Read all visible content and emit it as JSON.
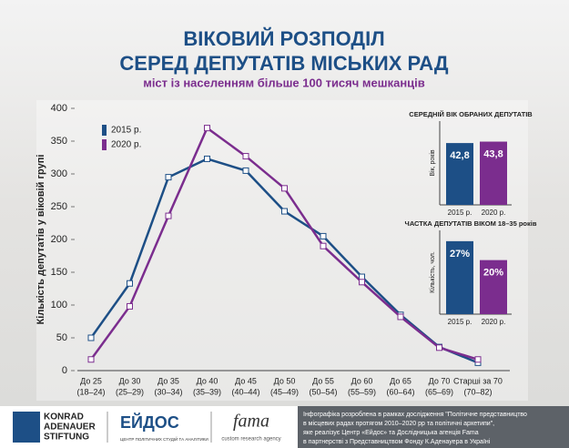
{
  "header": {
    "title_lines": [
      "ВІКОВИЙ РОЗПОДІЛ",
      "СЕРЕД ДЕПУТАТІВ МІСЬКИХ РАД"
    ],
    "subtitle": "міст із населенням більше 100 тисяч мешканців"
  },
  "chart_data": [
    {
      "type": "line",
      "y_label": "Кількість депутатів у віковій групі",
      "categories": [
        "До 25",
        "До 30",
        "До 35",
        "До 40",
        "До 45",
        "До 50",
        "До 55",
        "До 60",
        "До 65",
        "До 70",
        "Старші за 70"
      ],
      "category_ranges": [
        "(18–24)",
        "(25–29)",
        "(30–34)",
        "(35–39)",
        "(40–44)",
        "(45–49)",
        "(50–54)",
        "(55–59)",
        "(60–64)",
        "(65–69)",
        "(70–82)"
      ],
      "series": [
        {
          "name": "2015 р.",
          "color": "#1d4f86",
          "values": [
            50,
            133,
            295,
            323,
            305,
            243,
            205,
            143,
            85,
            36,
            12
          ]
        },
        {
          "name": "2020 р.",
          "color": "#7b2d8e",
          "values": [
            17,
            98,
            236,
            370,
            327,
            278,
            190,
            135,
            82,
            35,
            17
          ]
        }
      ],
      "ylim": [
        0,
        400
      ],
      "yticks": [
        0,
        50,
        100,
        150,
        200,
        250,
        300,
        350,
        400
      ],
      "legend": "top-left"
    },
    {
      "type": "bar",
      "title": "СЕРЕДНІЙ ВІК ОБРАНИХ ДЕПУТАТІВ",
      "y_label": "Вік, років",
      "categories": [
        "2015 р.",
        "2020 р."
      ],
      "values": [
        42.8,
        43.8
      ],
      "value_labels": [
        "42,8",
        "43,8"
      ],
      "colors": [
        "#1d4f86",
        "#7b2d8e"
      ],
      "ylim": [
        0,
        58
      ]
    },
    {
      "type": "bar",
      "title": "ЧАСТКА ДЕПУТАТІВ ВІКОМ 18–35 років",
      "y_label": "Кількість, чол.",
      "categories": [
        "2015 р.",
        "2020 р."
      ],
      "values": [
        27,
        20
      ],
      "value_labels": [
        "27%",
        "20%"
      ],
      "colors": [
        "#1d4f86",
        "#7b2d8e"
      ],
      "ylim": [
        0,
        31
      ]
    }
  ],
  "footer": {
    "kas": [
      "KONRAD",
      "ADENAUER",
      "STIFTUNG"
    ],
    "eidos": "ЕЙДОС",
    "eidos_sub": "ЦЕНТР ПОЛІТИЧНИХ СТУДІЙ ТА АНАЛІТИКИ",
    "fama": "fama",
    "fama_sub": "custom research agency",
    "note_lines": [
      "Інфографіка розроблена в рамках дослідження \"Політичне представництво",
      "в місцевих радах протягом 2010–2020 рр та політичні архетипи\",",
      "яке реалізує Центр «Ейдос» та Дослідницька агенція Fama",
      "в партнерстві з Представництвом Фонду К.Аденауера в Україні"
    ]
  }
}
